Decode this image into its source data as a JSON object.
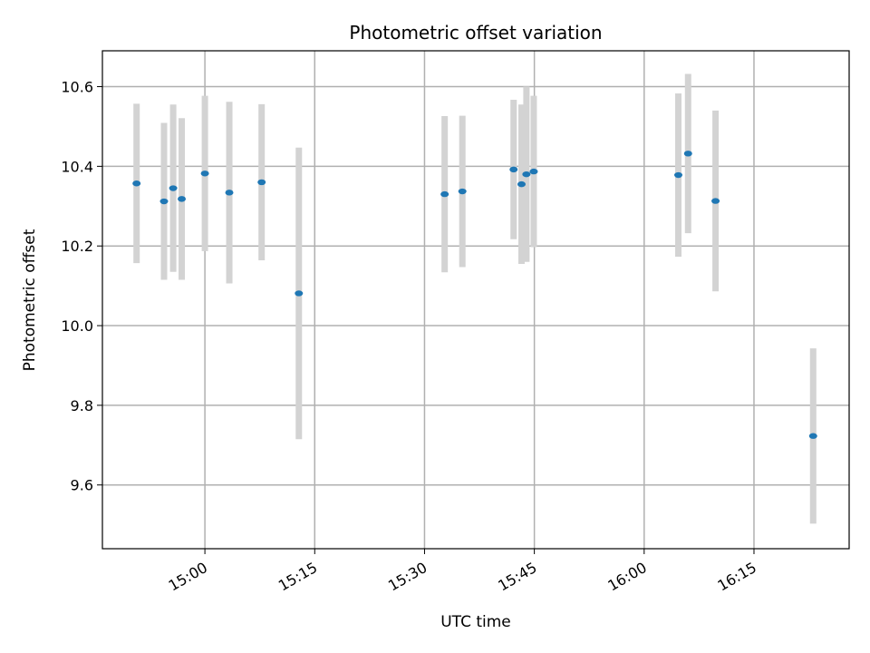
{
  "chart_data": {
    "type": "scatter",
    "title": "Photometric offset variation",
    "xlabel": "UTC time",
    "ylabel": "Photometric offset",
    "xlim": [
      "14:46",
      "16:28"
    ],
    "ylim": [
      9.44,
      10.69
    ],
    "x_ticks": [
      "15:00",
      "15:15",
      "15:30",
      "15:45",
      "16:00",
      "16:15"
    ],
    "y_ticks": [
      9.6,
      9.8,
      10.0,
      10.2,
      10.4,
      10.6
    ],
    "grid": true,
    "errorbar_color": "#d3d3d3",
    "marker_color": "#1f77b4",
    "series": [
      {
        "points": [
          {
            "x": "14:50:40",
            "y": 10.357,
            "err": 0.2
          },
          {
            "x": "14:54:25",
            "y": 10.312,
            "err": 0.197
          },
          {
            "x": "14:55:40",
            "y": 10.345,
            "err": 0.21
          },
          {
            "x": "14:56:50",
            "y": 10.318,
            "err": 0.203
          },
          {
            "x": "15:00:00",
            "y": 10.382,
            "err": 0.195
          },
          {
            "x": "15:03:20",
            "y": 10.334,
            "err": 0.228
          },
          {
            "x": "15:07:45",
            "y": 10.36,
            "err": 0.196
          },
          {
            "x": "15:12:50",
            "y": 10.081,
            "err": 0.366
          },
          {
            "x": "15:32:45",
            "y": 10.33,
            "err": 0.196
          },
          {
            "x": "15:35:10",
            "y": 10.337,
            "err": 0.19
          },
          {
            "x": "15:42:10",
            "y": 10.392,
            "err": 0.175
          },
          {
            "x": "15:43:15",
            "y": 10.355,
            "err": 0.2
          },
          {
            "x": "15:43:55",
            "y": 10.38,
            "err": 0.22
          },
          {
            "x": "15:44:55",
            "y": 10.387,
            "err": 0.19
          },
          {
            "x": "16:04:40",
            "y": 10.378,
            "err": 0.205
          },
          {
            "x": "16:06:00",
            "y": 10.432,
            "err": 0.2
          },
          {
            "x": "16:09:45",
            "y": 10.313,
            "err": 0.227
          },
          {
            "x": "16:23:05",
            "y": 9.723,
            "err": 0.22
          }
        ]
      }
    ]
  }
}
